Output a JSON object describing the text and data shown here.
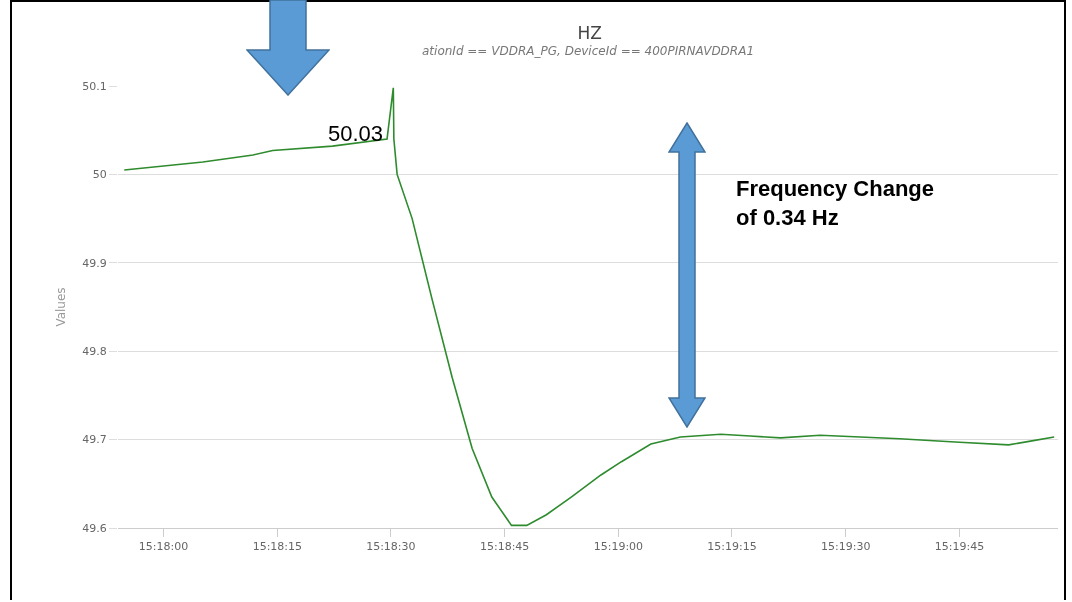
{
  "chart_data": {
    "type": "line",
    "title": "HZ",
    "subtitle": "ationId == VDDRA_PG, DeviceId == 400PIRNAVDDRA1",
    "ylabel": "Values",
    "x": [
      15.29856,
      15.30144,
      15.30328,
      15.304,
      15.30619,
      15.30819,
      15.30842,
      15.30844,
      15.30856,
      15.30911,
      15.30983,
      15.31058,
      15.31131,
      15.31203,
      15.31275,
      15.31331,
      15.31403,
      15.31494,
      15.31603,
      15.31678,
      15.31786,
      15.31894,
      15.32042,
      15.3215,
      15.32261,
      15.32406,
      15.32553,
      15.32697,
      15.32917,
      15.33097,
      15.33172,
      15.33264
    ],
    "series": [
      {
        "color": "#2e8b2e",
        "values": [
          50.005,
          50.014,
          50.022,
          50.027,
          50.032,
          50.04,
          50.098,
          50.04,
          50.0,
          49.95,
          49.86,
          49.77,
          49.69,
          49.635,
          49.603,
          49.603,
          49.615,
          49.635,
          49.66,
          49.675,
          49.695,
          49.703,
          49.706,
          49.704,
          49.702,
          49.705,
          49.703,
          49.701,
          49.697,
          49.694,
          49.698,
          49.703
        ]
      }
    ],
    "xlim": [
      15.29833,
      15.33278
    ],
    "xticks": [
      {
        "value": 15.3,
        "label": "15:18:00"
      },
      {
        "value": 15.30417,
        "label": "15:18:15"
      },
      {
        "value": 15.30833,
        "label": "15:18:30"
      },
      {
        "value": 15.3125,
        "label": "15:18:45"
      },
      {
        "value": 15.31667,
        "label": "15:19:00"
      },
      {
        "value": 15.32083,
        "label": "15:19:15"
      },
      {
        "value": 15.325,
        "label": "15:19:30"
      },
      {
        "value": 15.32917,
        "label": "15:19:45"
      }
    ],
    "ylim": [
      49.6,
      50.1
    ],
    "yticks": [
      {
        "value": 49.6,
        "label": "49.6"
      },
      {
        "value": 49.7,
        "label": "49.7"
      },
      {
        "value": 49.8,
        "label": "49.8"
      },
      {
        "value": 49.9,
        "label": "49.9"
      },
      {
        "value": 50,
        "label": "50"
      },
      {
        "value": 50.1,
        "label": "50.1"
      }
    ],
    "annotations": [
      "50.03",
      "Frequency Change\nof 0.34 Hz"
    ],
    "grid": "y",
    "marker": "none",
    "line_style": "solid"
  }
}
